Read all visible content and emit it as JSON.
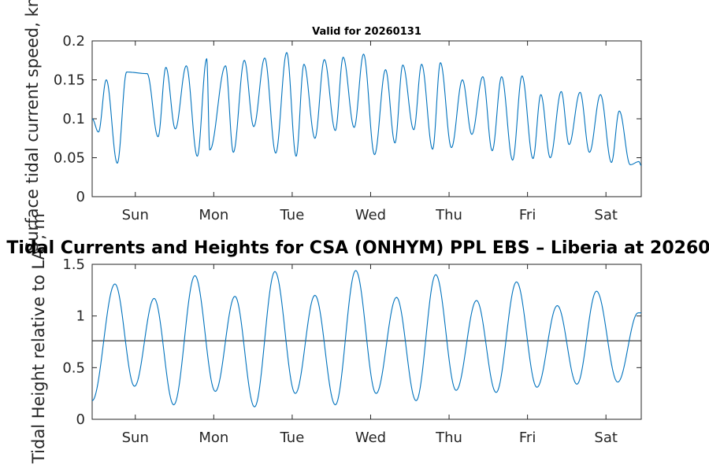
{
  "chart_data": [
    {
      "type": "line",
      "title": "Valid for 20260131",
      "ylabel": "Surface tidal current speed, kn",
      "xlabel": "",
      "xlim": [
        0,
        7
      ],
      "ylim": [
        0,
        0.2
      ],
      "ytick_labels": [
        "0",
        "0.05",
        "0.1",
        "0.15",
        "0.2"
      ],
      "ytick_values": [
        0,
        0.05,
        0.1,
        0.15,
        0.2
      ],
      "xtick_labels": [
        "Sun",
        "Mon",
        "Tue",
        "Wed",
        "Thu",
        "Fri",
        "Sat"
      ],
      "xtick_values": [
        0.55,
        1.55,
        2.55,
        3.55,
        4.55,
        5.55,
        6.55
      ],
      "grid": false,
      "series": [
        {
          "color": "#0072BD",
          "x": [
            0,
            0.08,
            0.18,
            0.32,
            0.44,
            0.7,
            0.84,
            0.94,
            1.06,
            1.2,
            1.34,
            1.46,
            1.5,
            1.7,
            1.8,
            1.94,
            2.06,
            2.2,
            2.34,
            2.48,
            2.6,
            2.7,
            2.84,
            2.96,
            3.1,
            3.2,
            3.34,
            3.46,
            3.6,
            3.74,
            3.86,
            3.96,
            4.1,
            4.2,
            4.34,
            4.44,
            4.58,
            4.72,
            4.84,
            4.98,
            5.1,
            5.22,
            5.36,
            5.48,
            5.62,
            5.72,
            5.84,
            5.98,
            6.08,
            6.22,
            6.34,
            6.48,
            6.62,
            6.72,
            6.86,
            6.97,
            7.0
          ],
          "y": [
            0.1,
            0.083,
            0.15,
            0.043,
            0.16,
            0.158,
            0.077,
            0.166,
            0.087,
            0.168,
            0.052,
            0.177,
            0.06,
            0.168,
            0.057,
            0.175,
            0.09,
            0.178,
            0.056,
            0.185,
            0.052,
            0.17,
            0.075,
            0.176,
            0.085,
            0.179,
            0.089,
            0.183,
            0.054,
            0.163,
            0.069,
            0.169,
            0.086,
            0.17,
            0.061,
            0.172,
            0.063,
            0.15,
            0.08,
            0.154,
            0.059,
            0.154,
            0.047,
            0.155,
            0.049,
            0.131,
            0.05,
            0.135,
            0.067,
            0.134,
            0.057,
            0.131,
            0.044,
            0.11,
            0.041,
            0.045,
            0.04
          ]
        }
      ]
    },
    {
      "type": "line",
      "title": "Tidal Currents and Heights for CSA (ONHYM) PPL EBS  – Liberia at 20260",
      "ylabel": "Tidal Height relative to LAT, m",
      "xlabel": "",
      "xlim": [
        0,
        7
      ],
      "ylim": [
        0,
        1.5
      ],
      "ytick_labels": [
        "0",
        "0.5",
        "1",
        "1.5"
      ],
      "ytick_values": [
        0,
        0.5,
        1,
        1.5
      ],
      "xtick_labels": [
        "Sun",
        "Mon",
        "Tue",
        "Wed",
        "Thu",
        "Fri",
        "Sat"
      ],
      "xtick_values": [
        0.55,
        1.55,
        2.55,
        3.55,
        4.55,
        5.55,
        6.55
      ],
      "grid": false,
      "reference_line": {
        "y": 0.76,
        "color": "#262626"
      },
      "series": [
        {
          "color": "#0072BD",
          "x": [
            0,
            0.29,
            0.54,
            0.79,
            1.04,
            1.31,
            1.57,
            1.82,
            2.07,
            2.33,
            2.59,
            2.84,
            3.1,
            3.36,
            3.62,
            3.88,
            4.13,
            4.38,
            4.64,
            4.9,
            5.15,
            5.41,
            5.67,
            5.93,
            6.18,
            6.43,
            6.7,
            6.96,
            7.0
          ],
          "y": [
            0.18,
            1.31,
            0.32,
            1.17,
            0.14,
            1.39,
            0.27,
            1.19,
            0.12,
            1.43,
            0.25,
            1.2,
            0.14,
            1.44,
            0.25,
            1.18,
            0.18,
            1.4,
            0.28,
            1.15,
            0.26,
            1.33,
            0.31,
            1.1,
            0.34,
            1.24,
            0.36,
            1.03,
            1.03
          ]
        }
      ]
    }
  ]
}
